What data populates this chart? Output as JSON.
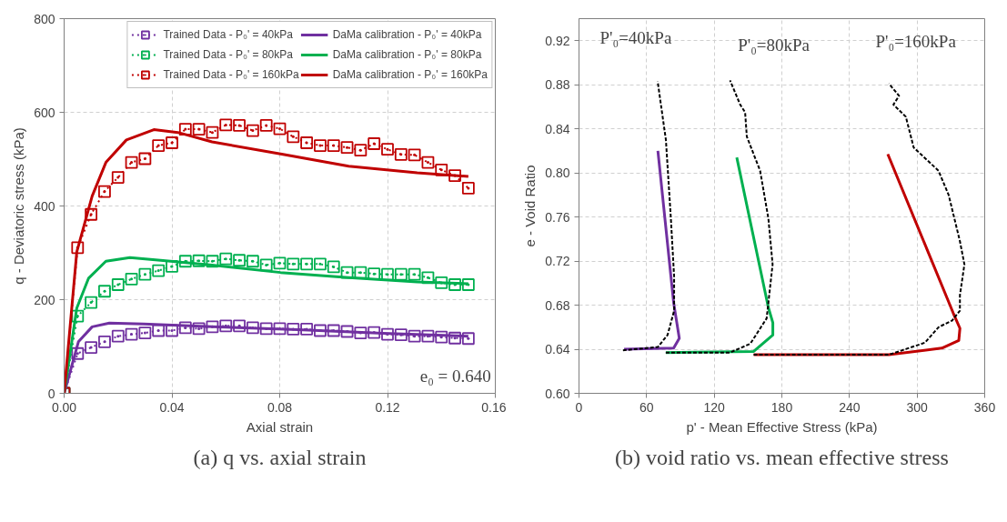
{
  "chart_data": [
    {
      "type": "line",
      "title": "(a) q vs. axial strain",
      "xlabel": "Axial strain",
      "ylabel": "q - Deviatoric stress (kPa)",
      "xlim": [
        0,
        0.16
      ],
      "ylim": [
        0,
        800
      ],
      "xticks": [
        {
          "value": 0,
          "label": "0.00"
        },
        {
          "value": 0.04,
          "label": "0.04"
        },
        {
          "value": 0.08,
          "label": "0.08"
        },
        {
          "value": 0.12,
          "label": "0.12"
        },
        {
          "value": 0.16,
          "label": "0.16"
        }
      ],
      "yticks": [
        0,
        200,
        400,
        600,
        800
      ],
      "grid": true,
      "legend": "top right",
      "annotations": [
        "e₀ = 0.640"
      ],
      "series": [
        {
          "name": "Trained Data - P₀' = 40kPa",
          "color": "#7030a0",
          "marker": "square",
          "line_style": "dotted",
          "x": [
            0,
            0.005,
            0.01,
            0.015,
            0.02,
            0.025,
            0.03,
            0.035,
            0.04,
            0.045,
            0.05,
            0.055,
            0.06,
            0.065,
            0.07,
            0.075,
            0.08,
            0.085,
            0.09,
            0.095,
            0.1,
            0.105,
            0.11,
            0.115,
            0.12,
            0.125,
            0.13,
            0.135,
            0.14,
            0.145,
            0.15
          ],
          "values": [
            0,
            85,
            98,
            110,
            122,
            126,
            129,
            134,
            134,
            140,
            138,
            142,
            144,
            144,
            140,
            138,
            138,
            137,
            137,
            134,
            134,
            132,
            129,
            130,
            126,
            125,
            122,
            122,
            120,
            118,
            117
          ]
        },
        {
          "name": "Trained Data - P₀' = 80kPa",
          "color": "#00b050",
          "marker": "square",
          "line_style": "dotted",
          "x": [
            0,
            0.005,
            0.01,
            0.015,
            0.02,
            0.025,
            0.03,
            0.035,
            0.04,
            0.045,
            0.05,
            0.055,
            0.06,
            0.065,
            0.07,
            0.075,
            0.08,
            0.085,
            0.09,
            0.095,
            0.1,
            0.105,
            0.11,
            0.115,
            0.12,
            0.125,
            0.13,
            0.135,
            0.14,
            0.145,
            0.15
          ],
          "values": [
            0,
            165,
            194,
            218,
            232,
            244,
            254,
            262,
            271,
            282,
            283,
            282,
            287,
            284,
            282,
            274,
            278,
            276,
            276,
            276,
            270,
            258,
            258,
            255,
            254,
            254,
            254,
            247,
            236,
            232,
            232
          ]
        },
        {
          "name": "Trained Data - P₀' = 160kPa",
          "color": "#c00000",
          "marker": "square",
          "line_style": "dotted",
          "x": [
            0,
            0.005,
            0.01,
            0.015,
            0.02,
            0.025,
            0.03,
            0.035,
            0.04,
            0.045,
            0.05,
            0.055,
            0.06,
            0.065,
            0.07,
            0.075,
            0.08,
            0.085,
            0.09,
            0.095,
            0.1,
            0.105,
            0.11,
            0.115,
            0.12,
            0.125,
            0.13,
            0.135,
            0.14,
            0.145,
            0.15
          ],
          "values": [
            0,
            311,
            382,
            431,
            461,
            493,
            501,
            529,
            535,
            564,
            564,
            557,
            573,
            572,
            561,
            572,
            565,
            548,
            535,
            529,
            529,
            525,
            519,
            533,
            521,
            510,
            509,
            493,
            477,
            465,
            438
          ]
        },
        {
          "name": "DaMa calibration - P₀' = 40kPa",
          "color": "#7030a0",
          "marker": "none",
          "line_style": "solid",
          "x": [
            0,
            0.0053,
            0.0104,
            0.0168,
            0.0295,
            0.0549,
            0.0866,
            0.1184,
            0.15
          ],
          "values": [
            0,
            110,
            142,
            150,
            148,
            142,
            136,
            128,
            122
          ]
        },
        {
          "name": "DaMa calibration - P₀' = 80kPa",
          "color": "#00b050",
          "marker": "none",
          "line_style": "solid",
          "x": [
            0,
            0.0047,
            0.0091,
            0.0155,
            0.0244,
            0.0358,
            0.0549,
            0.0803,
            0.1056,
            0.131,
            0.15
          ],
          "values": [
            0,
            182,
            246,
            282,
            290,
            284,
            274,
            258,
            247,
            238,
            234
          ]
        },
        {
          "name": "DaMa calibration - P₀' = 160kPa",
          "color": "#c00000",
          "marker": "none",
          "line_style": "solid",
          "x": [
            0,
            0.0047,
            0.0104,
            0.0155,
            0.0231,
            0.0333,
            0.0422,
            0.0549,
            0.0803,
            0.1056,
            0.131,
            0.15
          ],
          "values": [
            0,
            302,
            421,
            493,
            541,
            563,
            557,
            537,
            511,
            485,
            471,
            463
          ]
        }
      ]
    },
    {
      "type": "line",
      "title": "(b) void ratio vs. mean effective stress",
      "xlabel": "p' - Mean Effective Stress (kPa)",
      "ylabel": "e - Void Ratio",
      "xlim": [
        0,
        360
      ],
      "ylim": [
        0.6,
        0.94
      ],
      "xticks": [
        0,
        60,
        120,
        180,
        240,
        300,
        360
      ],
      "yticks": [
        {
          "value": 0.6,
          "label": "0.60"
        },
        {
          "value": 0.64,
          "label": "0.64"
        },
        {
          "value": 0.68,
          "label": "0.68"
        },
        {
          "value": 0.72,
          "label": "0.72"
        },
        {
          "value": 0.76,
          "label": "0.76"
        },
        {
          "value": 0.8,
          "label": "0.80"
        },
        {
          "value": 0.84,
          "label": "0.84"
        },
        {
          "value": 0.88,
          "label": "0.88"
        },
        {
          "value": 0.92,
          "label": "0.92"
        }
      ],
      "grid": true,
      "annotations": [
        "P'₀=40kPa",
        "P'₀=80kPa",
        "P'₀=160kPa"
      ],
      "series": [
        {
          "color": "#000000",
          "line_style": "dashed",
          "x": [
            39,
            70,
            78.6,
            84.4,
            84.4,
            81.5,
            77.1,
            69.8
          ],
          "values": [
            0.639,
            0.642,
            0.653,
            0.675,
            0.706,
            0.759,
            0.83,
            0.883
          ]
        },
        {
          "color": "#7030a0",
          "line_style": "solid",
          "x": [
            40,
            84,
            89,
            84,
            70
          ],
          "values": [
            0.64,
            0.641,
            0.65,
            0.682,
            0.82
          ]
        },
        {
          "color": "#000000",
          "line_style": "dashed",
          "x": [
            77,
            134,
            152,
            166.5,
            171.8,
            168,
            160.7,
            148.9,
            147.4,
            143,
            134
          ],
          "values": [
            0.637,
            0.637,
            0.645,
            0.668,
            0.717,
            0.759,
            0.802,
            0.833,
            0.855,
            0.862,
            0.884
          ]
        },
        {
          "color": "#00b050",
          "line_style": "solid",
          "x": [
            77,
            155,
            172,
            172,
            168,
            140
          ],
          "values": [
            0.637,
            0.638,
            0.653,
            0.664,
            0.678,
            0.814
          ]
        },
        {
          "color": "#000000",
          "line_style": "dashed",
          "x": [
            155,
            275,
            307,
            319,
            331,
            338,
            338,
            342,
            338,
            328,
            319,
            297,
            290,
            279,
            284,
            275
          ],
          "values": [
            0.635,
            0.635,
            0.646,
            0.66,
            0.666,
            0.675,
            0.689,
            0.717,
            0.738,
            0.78,
            0.802,
            0.823,
            0.851,
            0.862,
            0.87,
            0.881
          ]
        },
        {
          "color": "#c00000",
          "line_style": "solid",
          "x": [
            155,
            275,
            322,
            337,
            338,
            332,
            274
          ],
          "values": [
            0.635,
            0.635,
            0.641,
            0.648,
            0.659,
            0.673,
            0.817
          ]
        }
      ]
    }
  ]
}
